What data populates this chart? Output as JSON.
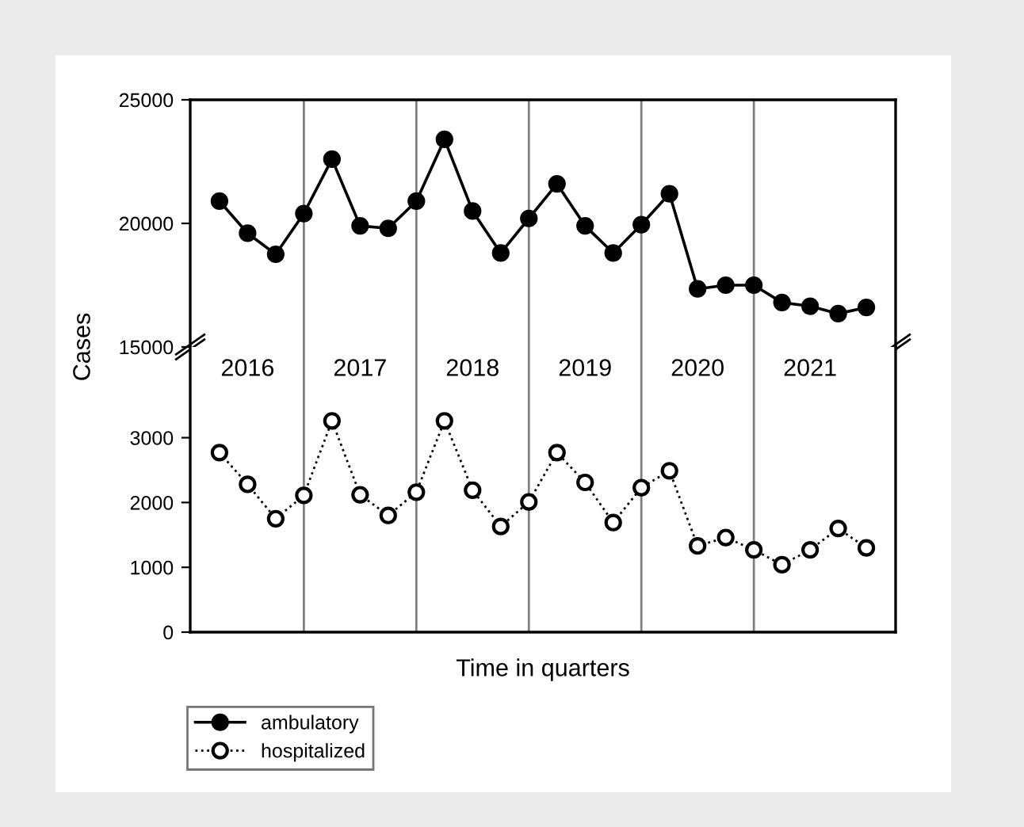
{
  "chart_data": [
    {
      "type": "line",
      "ylabel": "Cases",
      "categories": [
        null,
        null,
        null,
        null,
        null,
        null,
        null,
        null,
        null,
        null,
        null,
        null,
        null,
        null,
        null,
        null,
        null,
        null,
        null,
        null,
        null,
        null,
        null,
        null
      ],
      "ylim": [
        15000,
        25000
      ],
      "yticks": [
        15000,
        20000,
        25000
      ],
      "tick_labels": "y",
      "grid": "x",
      "legend": "bottom left",
      "marker": "circle",
      "line_style": "solid",
      "series": [
        {
          "name": "ambulatory",
          "color": "#000000",
          "values": [
            20900,
            19600,
            18750,
            20400,
            22600,
            19900,
            19800,
            20900,
            23400,
            20500,
            18800,
            20200,
            21600,
            19900,
            18800,
            19950,
            21200,
            17350,
            17500,
            17500,
            16800,
            16650,
            16350,
            16600
          ]
        }
      ]
    },
    {
      "type": "line",
      "xlabel": "Time in quarters",
      "categories": [
        null,
        null,
        null,
        null,
        null,
        null,
        null,
        null,
        null,
        null,
        null,
        null,
        null,
        null,
        null,
        null,
        null,
        null,
        null,
        null,
        null,
        null,
        null,
        null
      ],
      "ylim": [
        0,
        4400
      ],
      "yticks": [
        0,
        1000,
        2000,
        3000
      ],
      "tick_labels": "y",
      "grid": "x",
      "legend": "bottom left",
      "marker": "circle",
      "line_style": "dotted",
      "series": [
        {
          "name": "hospitalized",
          "color": "#000000",
          "values": [
            2770,
            2280,
            1750,
            2110,
            3260,
            2120,
            1800,
            2160,
            3260,
            2190,
            1630,
            2010,
            2770,
            2310,
            1690,
            2230,
            2490,
            1330,
            1460,
            1270,
            1040,
            1270,
            1600,
            1300
          ]
        }
      ],
      "annotations": [
        "2016",
        "2017",
        "2018",
        "2019",
        "2020",
        "2021"
      ]
    }
  ]
}
